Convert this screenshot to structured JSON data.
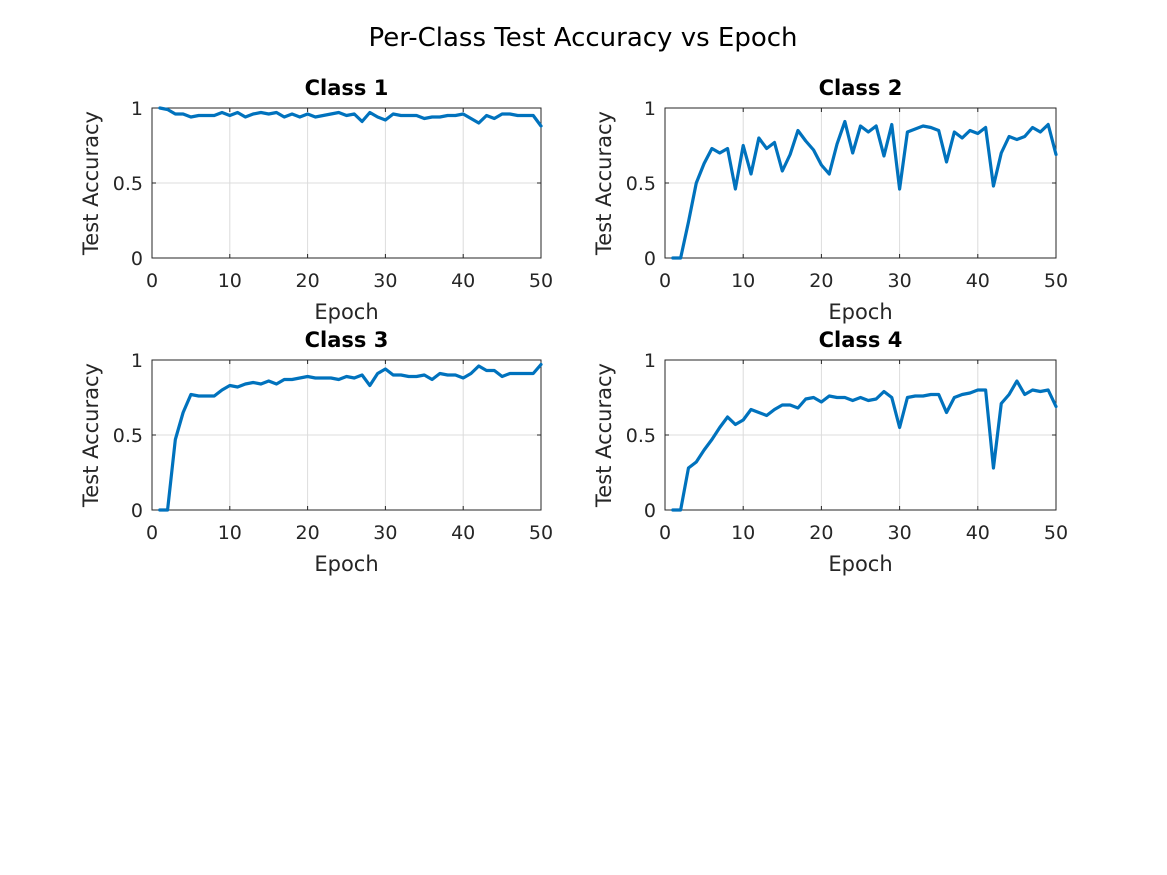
{
  "figure": {
    "title": "Per-Class Test Accuracy vs Epoch"
  },
  "colors": {
    "series": "#0072BD"
  },
  "chart_data": [
    {
      "type": "line",
      "title": "Class 1",
      "xlabel": "Epoch",
      "ylabel": "Test Accuracy",
      "xlim": [
        0,
        50
      ],
      "ylim": [
        0,
        1
      ],
      "xticks": [
        0,
        10,
        20,
        30,
        40,
        50
      ],
      "yticks": [
        0,
        0.5,
        1
      ],
      "grid": true,
      "x": [
        1,
        2,
        3,
        4,
        5,
        6,
        7,
        8,
        9,
        10,
        11,
        12,
        13,
        14,
        15,
        16,
        17,
        18,
        19,
        20,
        21,
        22,
        23,
        24,
        25,
        26,
        27,
        28,
        29,
        30,
        31,
        32,
        33,
        34,
        35,
        36,
        37,
        38,
        39,
        40,
        41,
        42,
        43,
        44,
        45,
        46,
        47,
        48,
        49,
        50
      ],
      "y": [
        1.0,
        0.99,
        0.96,
        0.96,
        0.94,
        0.95,
        0.95,
        0.95,
        0.97,
        0.95,
        0.97,
        0.94,
        0.96,
        0.97,
        0.96,
        0.97,
        0.94,
        0.96,
        0.94,
        0.96,
        0.94,
        0.95,
        0.96,
        0.97,
        0.95,
        0.96,
        0.91,
        0.97,
        0.94,
        0.92,
        0.96,
        0.95,
        0.95,
        0.95,
        0.93,
        0.94,
        0.94,
        0.95,
        0.95,
        0.96,
        0.93,
        0.9,
        0.95,
        0.93,
        0.96,
        0.96,
        0.95,
        0.95,
        0.95,
        0.88
      ]
    },
    {
      "type": "line",
      "title": "Class 2",
      "xlabel": "Epoch",
      "ylabel": "Test Accuracy",
      "xlim": [
        0,
        50
      ],
      "ylim": [
        0,
        1
      ],
      "xticks": [
        0,
        10,
        20,
        30,
        40,
        50
      ],
      "yticks": [
        0,
        0.5,
        1
      ],
      "grid": true,
      "x": [
        1,
        2,
        3,
        4,
        5,
        6,
        7,
        8,
        9,
        10,
        11,
        12,
        13,
        14,
        15,
        16,
        17,
        18,
        19,
        20,
        21,
        22,
        23,
        24,
        25,
        26,
        27,
        28,
        29,
        30,
        31,
        32,
        33,
        34,
        35,
        36,
        37,
        38,
        39,
        40,
        41,
        42,
        43,
        44,
        45,
        46,
        47,
        48,
        49,
        50
      ],
      "y": [
        0.0,
        0.0,
        0.24,
        0.5,
        0.63,
        0.73,
        0.7,
        0.73,
        0.46,
        0.75,
        0.56,
        0.8,
        0.73,
        0.77,
        0.58,
        0.69,
        0.85,
        0.78,
        0.72,
        0.62,
        0.56,
        0.76,
        0.91,
        0.7,
        0.88,
        0.84,
        0.88,
        0.68,
        0.89,
        0.46,
        0.84,
        0.86,
        0.88,
        0.87,
        0.85,
        0.64,
        0.84,
        0.8,
        0.85,
        0.83,
        0.87,
        0.48,
        0.7,
        0.81,
        0.79,
        0.81,
        0.87,
        0.84,
        0.89,
        0.69
      ]
    },
    {
      "type": "line",
      "title": "Class 3",
      "xlabel": "Epoch",
      "ylabel": "Test Accuracy",
      "xlim": [
        0,
        50
      ],
      "ylim": [
        0,
        1
      ],
      "xticks": [
        0,
        10,
        20,
        30,
        40,
        50
      ],
      "yticks": [
        0,
        0.5,
        1
      ],
      "grid": true,
      "x": [
        1,
        2,
        3,
        4,
        5,
        6,
        7,
        8,
        9,
        10,
        11,
        12,
        13,
        14,
        15,
        16,
        17,
        18,
        19,
        20,
        21,
        22,
        23,
        24,
        25,
        26,
        27,
        28,
        29,
        30,
        31,
        32,
        33,
        34,
        35,
        36,
        37,
        38,
        39,
        40,
        41,
        42,
        43,
        44,
        45,
        46,
        47,
        48,
        49,
        50
      ],
      "y": [
        0.0,
        0.0,
        0.47,
        0.65,
        0.77,
        0.76,
        0.76,
        0.76,
        0.8,
        0.83,
        0.82,
        0.84,
        0.85,
        0.84,
        0.86,
        0.84,
        0.87,
        0.87,
        0.88,
        0.89,
        0.88,
        0.88,
        0.88,
        0.87,
        0.89,
        0.88,
        0.9,
        0.83,
        0.91,
        0.94,
        0.9,
        0.9,
        0.89,
        0.89,
        0.9,
        0.87,
        0.91,
        0.9,
        0.9,
        0.88,
        0.91,
        0.96,
        0.93,
        0.93,
        0.89,
        0.91,
        0.91,
        0.91,
        0.91,
        0.97
      ]
    },
    {
      "type": "line",
      "title": "Class 4",
      "xlabel": "Epoch",
      "ylabel": "Test Accuracy",
      "xlim": [
        0,
        50
      ],
      "ylim": [
        0,
        1
      ],
      "xticks": [
        0,
        10,
        20,
        30,
        40,
        50
      ],
      "yticks": [
        0,
        0.5,
        1
      ],
      "grid": true,
      "x": [
        1,
        2,
        3,
        4,
        5,
        6,
        7,
        8,
        9,
        10,
        11,
        12,
        13,
        14,
        15,
        16,
        17,
        18,
        19,
        20,
        21,
        22,
        23,
        24,
        25,
        26,
        27,
        28,
        29,
        30,
        31,
        32,
        33,
        34,
        35,
        36,
        37,
        38,
        39,
        40,
        41,
        42,
        43,
        44,
        45,
        46,
        47,
        48,
        49,
        50
      ],
      "y": [
        0.0,
        0.0,
        0.28,
        0.32,
        0.4,
        0.47,
        0.55,
        0.62,
        0.57,
        0.6,
        0.67,
        0.65,
        0.63,
        0.67,
        0.7,
        0.7,
        0.68,
        0.74,
        0.75,
        0.72,
        0.76,
        0.75,
        0.75,
        0.73,
        0.75,
        0.73,
        0.74,
        0.79,
        0.75,
        0.55,
        0.75,
        0.76,
        0.76,
        0.77,
        0.77,
        0.65,
        0.75,
        0.77,
        0.78,
        0.8,
        0.8,
        0.28,
        0.71,
        0.77,
        0.86,
        0.77,
        0.8,
        0.79,
        0.8,
        0.69
      ]
    }
  ]
}
